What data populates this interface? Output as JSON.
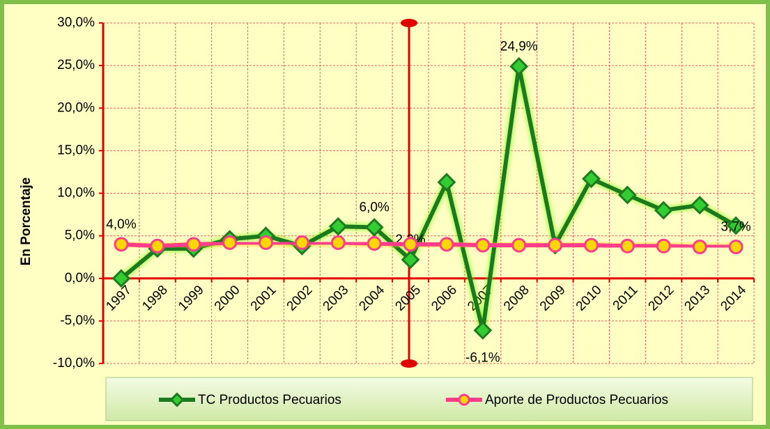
{
  "chart_data": {
    "type": "line",
    "y_label": "En Porcentaje",
    "categories": [
      "1997",
      "1998",
      "1999",
      "2000",
      "2001",
      "2002",
      "2003",
      "2004",
      "2005",
      "2006",
      "2007",
      "2008",
      "2009",
      "2010",
      "2011",
      "2012",
      "2013",
      "2014"
    ],
    "series": [
      {
        "name": "TC Productos Pecuarios",
        "color": "#1e7a1e",
        "values": [
          0.0,
          3.5,
          3.5,
          4.6,
          5.0,
          3.8,
          6.1,
          6.0,
          2.2,
          11.3,
          -6.1,
          24.9,
          3.9,
          11.7,
          9.8,
          8.0,
          8.6,
          6.2
        ],
        "value_labels": [
          null,
          null,
          null,
          null,
          null,
          null,
          null,
          "6,0%",
          "2,2%",
          null,
          "-6,1%",
          "24,9%",
          null,
          null,
          null,
          null,
          null,
          null
        ]
      },
      {
        "name": "Aporte de Productos Pecuarios",
        "color": "#ff3d8a",
        "values": [
          4.0,
          3.8,
          4.0,
          4.2,
          4.2,
          4.2,
          4.2,
          4.1,
          4.0,
          4.0,
          3.9,
          3.9,
          3.9,
          3.9,
          3.8,
          3.8,
          3.7,
          3.7
        ],
        "value_labels": [
          "4,0%",
          null,
          null,
          null,
          null,
          null,
          null,
          null,
          null,
          null,
          null,
          null,
          null,
          null,
          null,
          null,
          null,
          "3,7%"
        ]
      }
    ],
    "ylim": [
      -10,
      30
    ],
    "yticks": [
      {
        "value": -10,
        "label": "-10,0%"
      },
      {
        "value": -5,
        "label": "-5,0%"
      },
      {
        "value": 0,
        "label": "0,0%"
      },
      {
        "value": 5,
        "label": "5,0%"
      },
      {
        "value": 10,
        "label": "10,0%"
      },
      {
        "value": 15,
        "label": "15,0%"
      },
      {
        "value": 20,
        "label": "20,0%"
      },
      {
        "value": 25,
        "label": "25,0%"
      },
      {
        "value": 30,
        "label": "30,0%"
      }
    ],
    "grid": true
  }
}
